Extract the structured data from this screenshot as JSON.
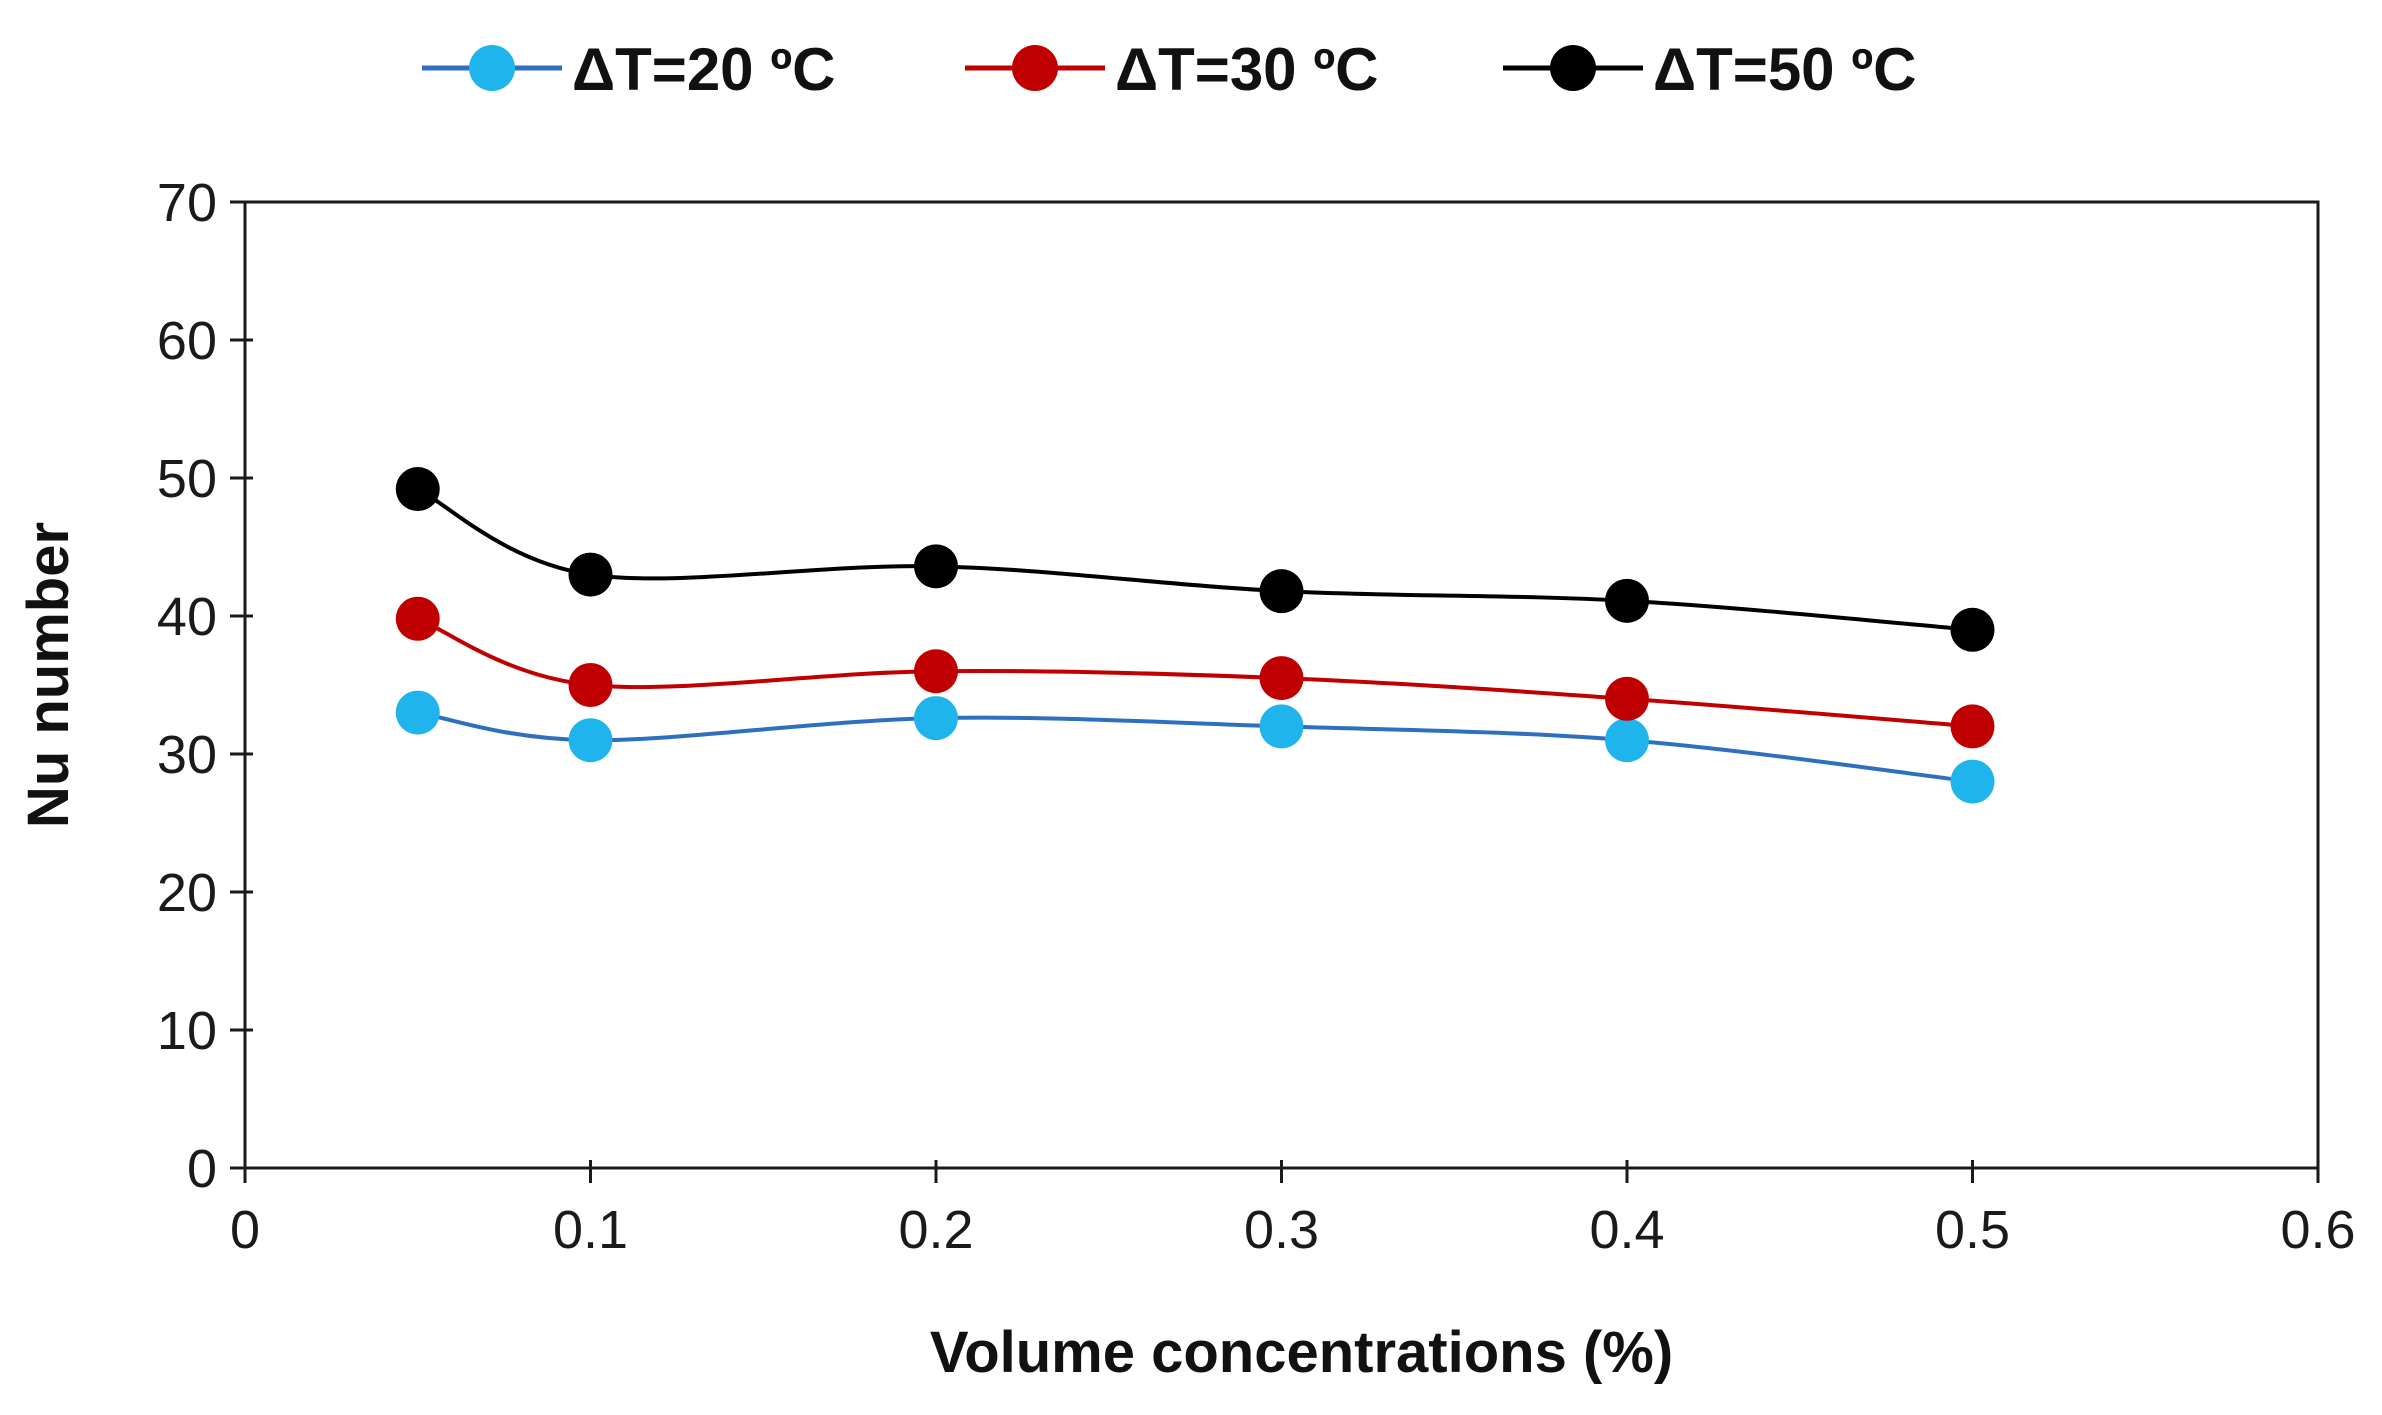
{
  "chart_data": {
    "type": "line",
    "title": "",
    "xlabel": "Volume concentrations (%)",
    "ylabel": "Nu number",
    "xlim": [
      0,
      0.6
    ],
    "ylim": [
      0,
      70
    ],
    "x_ticks": [
      "0",
      "0.1",
      "0.2",
      "0.3",
      "0.4",
      "0.5",
      "0.6"
    ],
    "y_ticks": [
      "0",
      "10",
      "20",
      "30",
      "40",
      "50",
      "60",
      "70"
    ],
    "grid": false,
    "legend_position": "top-center",
    "x": [
      0.05,
      0.1,
      0.2,
      0.3,
      0.4,
      0.5
    ],
    "series": [
      {
        "name": "ΔT=20 ºC",
        "color": "#1fb4ec",
        "line_color": "#2f6fc0",
        "values": [
          33.0,
          31.0,
          32.6,
          32.0,
          31.0,
          28.0
        ]
      },
      {
        "name": "ΔT=30 ºC",
        "color": "#c00000",
        "line_color": "#c00000",
        "values": [
          39.8,
          35.0,
          36.0,
          35.5,
          34.0,
          32.0
        ]
      },
      {
        "name": "ΔT=50 ºC",
        "color": "#000000",
        "line_color": "#000000",
        "values": [
          49.2,
          43.0,
          43.6,
          41.8,
          41.1,
          39.0
        ]
      }
    ]
  }
}
